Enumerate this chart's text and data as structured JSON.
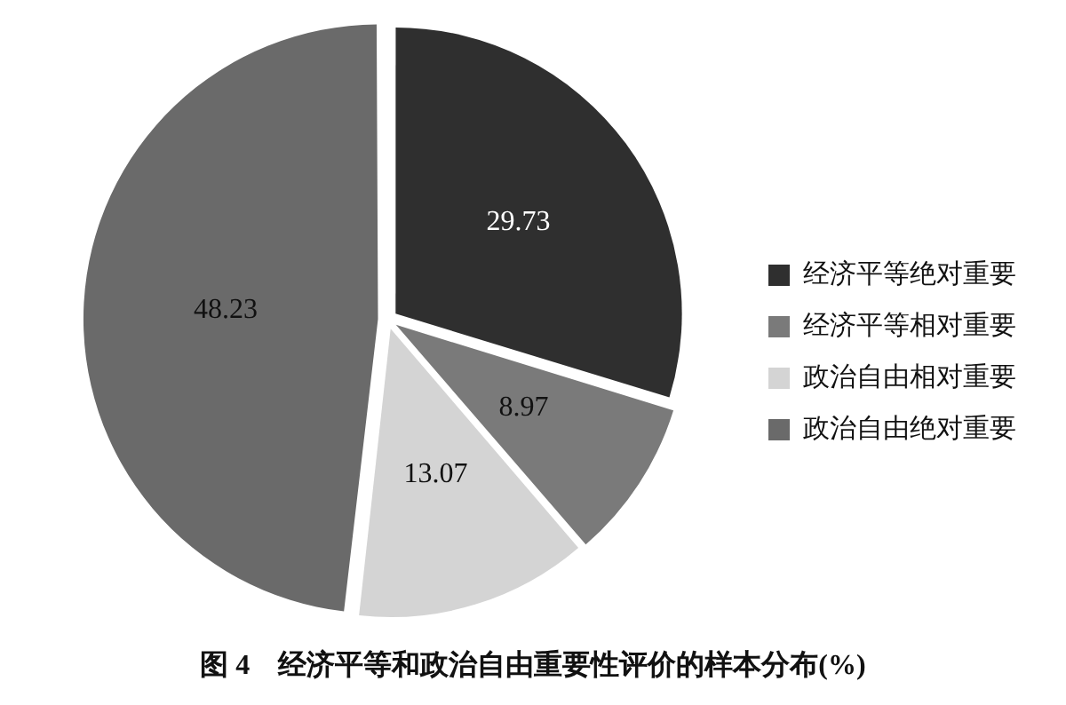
{
  "chart_data": {
    "type": "pie",
    "title": "图 4　经济平等和政治自由重要性评价的样本分布(%)",
    "categories": [
      "经济平等绝对重要",
      "经济平等相对重要",
      "政治自由相对重要",
      "政治自由绝对重要"
    ],
    "values": [
      29.73,
      8.97,
      13.07,
      48.23
    ],
    "colors": [
      "#2f2f2f",
      "#7a7a7a",
      "#d4d4d4",
      "#6a6a6a"
    ],
    "data_labels": true,
    "legend": "right"
  }
}
